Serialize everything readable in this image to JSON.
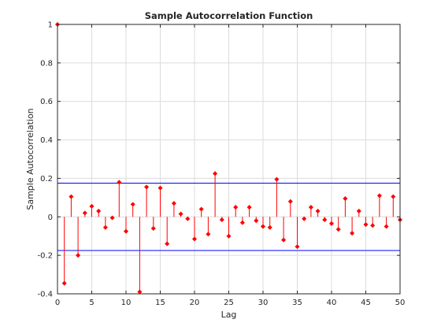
{
  "chart_data": {
    "type": "stem",
    "title": "Sample Autocorrelation Function",
    "xlabel": "Lag",
    "ylabel": "Sample Autocorrelation",
    "xlim": [
      0,
      50
    ],
    "ylim": [
      -0.4,
      1
    ],
    "grid": true,
    "x_ticks": [
      0,
      5,
      10,
      15,
      20,
      25,
      30,
      35,
      40,
      45,
      50
    ],
    "x_tick_labels": [
      "0",
      "5",
      "10",
      "15",
      "20",
      "25",
      "30",
      "35",
      "40",
      "45",
      "50"
    ],
    "y_ticks": [
      -0.4,
      -0.2,
      0,
      0.2,
      0.4,
      0.6,
      0.8,
      1
    ],
    "y_tick_labels": [
      "-0.4",
      "-0.2",
      "0",
      "0.2",
      "0.4",
      "0.6",
      "0.8",
      "1"
    ],
    "colors": {
      "stem": "#ff0000",
      "confidence": "#0000ff",
      "grid": "#dcdcdc",
      "axes": "#262626"
    },
    "confidence_bounds": [
      0.175,
      -0.175
    ],
    "series": [
      {
        "x": [
          0,
          1,
          2,
          3,
          4,
          5,
          6,
          7,
          8,
          9,
          10,
          11,
          12,
          13,
          14,
          15,
          16,
          17,
          18,
          19,
          20,
          21,
          22,
          23,
          24,
          25,
          26,
          27,
          28,
          29,
          30,
          31,
          32,
          33,
          34,
          35,
          36,
          37,
          38,
          39,
          40,
          41,
          42,
          43,
          44,
          45,
          46,
          47,
          48,
          49,
          50
        ],
        "values": [
          1.0,
          -0.345,
          0.105,
          -0.2,
          0.02,
          0.055,
          0.03,
          -0.055,
          -0.005,
          0.18,
          -0.075,
          0.065,
          -0.39,
          0.155,
          -0.06,
          0.15,
          -0.14,
          0.07,
          0.015,
          -0.01,
          -0.115,
          0.04,
          -0.09,
          0.225,
          -0.015,
          -0.1,
          0.05,
          -0.03,
          0.05,
          -0.02,
          -0.05,
          -0.055,
          0.195,
          -0.12,
          0.08,
          -0.155,
          -0.01,
          0.05,
          0.03,
          -0.015,
          -0.035,
          -0.065,
          0.095,
          -0.085,
          0.03,
          -0.04,
          -0.045,
          0.11,
          -0.05,
          0.105,
          -0.015
        ]
      }
    ]
  }
}
